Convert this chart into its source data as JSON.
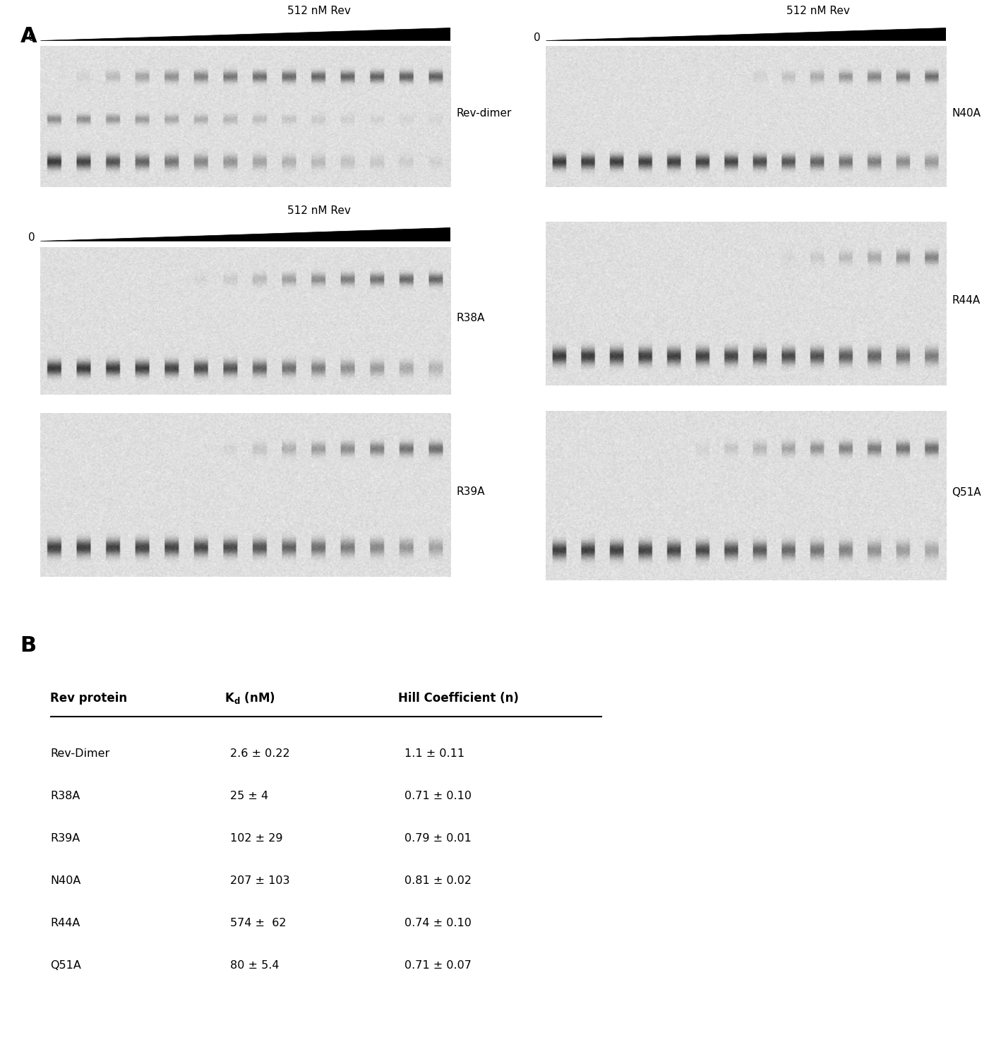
{
  "panel_A_label": "A",
  "panel_B_label": "B",
  "gel_labels_left": [
    "Rev-dimer",
    "R38A",
    "R39A"
  ],
  "gel_labels_right": [
    "N40A",
    "R44A",
    "Q51A"
  ],
  "conc_label": "512 nM Rev",
  "zero_label": "0",
  "table_rows": [
    [
      "Rev-Dimer",
      "2.6 ± 0.22",
      "1.1 ± 0.11"
    ],
    [
      "R38A",
      "25 ± 4",
      "0.71 ± 0.10"
    ],
    [
      "R39A",
      "102 ± 29",
      "0.79 ± 0.01"
    ],
    [
      "N40A",
      "207 ± 103",
      "0.81 ± 0.02"
    ],
    [
      "R44A",
      "574 ±  62",
      "0.74 ± 0.10"
    ],
    [
      "Q51A",
      "80 ± 5.4",
      "0.71 ± 0.07"
    ]
  ],
  "n_lanes": 14,
  "gel_noise_std": 0.025,
  "gel_bg": 0.87
}
